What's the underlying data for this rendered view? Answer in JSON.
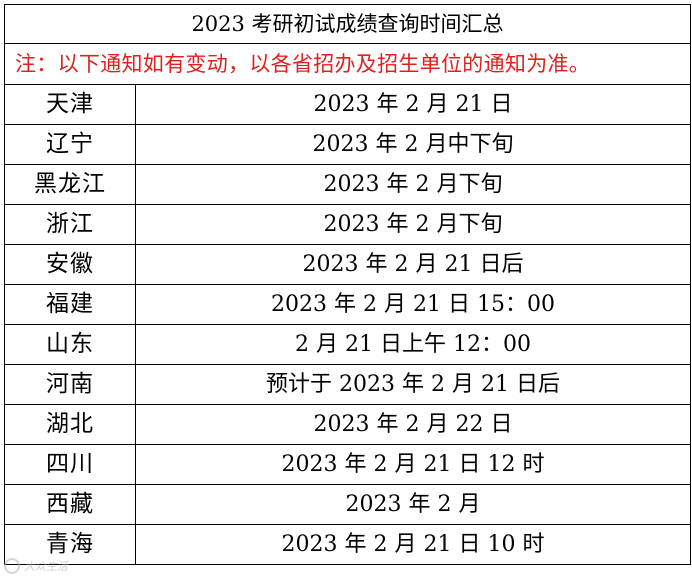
{
  "title": "2023 考研初试成绩查询时间汇总",
  "notice": "注：以下通知如有变动，以各省招办及招生单位的通知为准。",
  "rows": [
    {
      "province": "天津",
      "date": "2023 年 2 月 21 日"
    },
    {
      "province": "辽宁",
      "date": "2023 年 2 月中下旬"
    },
    {
      "province": "黑龙江",
      "date": "2023 年 2 月下旬"
    },
    {
      "province": "浙江",
      "date": "2023 年 2 月下旬"
    },
    {
      "province": "安徽",
      "date": "2023 年 2 月 21 日后"
    },
    {
      "province": "福建",
      "date": "2023 年 2 月 21 日 15：00"
    },
    {
      "province": "山东",
      "date": "2 月 21 日上午 12：00"
    },
    {
      "province": "河南",
      "date": "预计于 2023 年 2 月 21 日后"
    },
    {
      "province": "湖北",
      "date": "2023 年 2 月 22 日"
    },
    {
      "province": "四川",
      "date": "2023 年 2 月 21 日 12 时"
    },
    {
      "province": "西藏",
      "date": "2023 年 2 月"
    },
    {
      "province": "青海",
      "date": "2023 年 2 月 21 日 10 时"
    }
  ],
  "colors": {
    "notice": "#e0201f",
    "border": "#000000",
    "text": "#000000"
  },
  "watermark": {
    "text": "大众生活",
    "icon": "watermark-logo-icon"
  }
}
